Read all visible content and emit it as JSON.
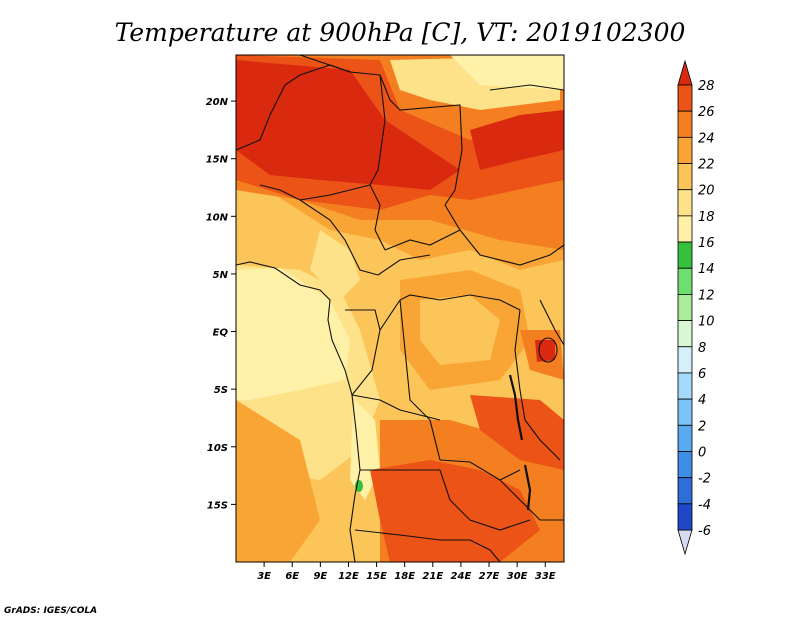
{
  "title": "Temperature at 900hPa [C], VT: 2019102300",
  "footer": "GrADS: IGES/COLA",
  "map": {
    "lon_range": [
      0,
      35
    ],
    "lat_range": [
      -20,
      24
    ],
    "lat_ticks": [
      "20N",
      "15N",
      "10N",
      "5N",
      "EQ",
      "5S",
      "10S",
      "15S"
    ],
    "lon_ticks": [
      "3E",
      "6E",
      "9E",
      "12E",
      "15E",
      "18E",
      "21E",
      "24E",
      "27E",
      "30E",
      "33E"
    ]
  },
  "colorbar": {
    "levels": [
      "-6",
      "-4",
      "-2",
      "0",
      "2",
      "4",
      "6",
      "8",
      "10",
      "12",
      "14",
      "16",
      "18",
      "20",
      "22",
      "24",
      "26",
      "28"
    ],
    "colors": [
      "#161c7e",
      "#1f47c7",
      "#2f6ed9",
      "#3d8ee5",
      "#5aaaf0",
      "#7cc3f7",
      "#a5dafa",
      "#d4f0fb",
      "#d9f7d3",
      "#a8ec9c",
      "#6ede70",
      "#35c03d",
      "#fff1a8",
      "#fde28a",
      "#fbc55a",
      "#f9a535",
      "#f47f21",
      "#ec5316",
      "#d92a10"
    ]
  },
  "field_colors": {
    "c18": "#fff1a8",
    "c20": "#fde28a",
    "c22": "#fbc55a",
    "c24": "#f9a535",
    "c26": "#f47f21",
    "c28": "#ec5316",
    "c30": "#d92a10",
    "green": "#35c03d"
  }
}
